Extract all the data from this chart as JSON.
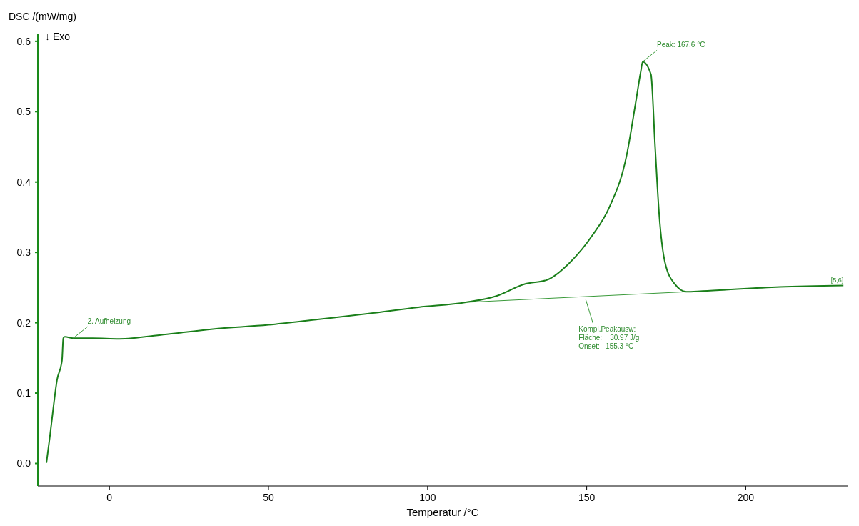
{
  "chart_data": {
    "type": "line",
    "xlabel": "Temperatur /°C",
    "ylabel": "DSC /(mW/mg)",
    "xlim": [
      -22.5,
      232
    ],
    "xticks": [
      0,
      50,
      100,
      150,
      200
    ],
    "ylim": [
      -0.032,
      0.61
    ],
    "yticks": [
      {
        "value": 0,
        "label": "0.0"
      },
      {
        "value": 0.1,
        "label": "0.1"
      },
      {
        "value": 0.2,
        "label": "0.2"
      },
      {
        "value": 0.3,
        "label": "0.3"
      },
      {
        "value": 0.4,
        "label": "0.4"
      },
      {
        "value": 0.5,
        "label": "0.5"
      },
      {
        "value": 0.6,
        "label": "0.6"
      }
    ],
    "grid": false,
    "legend": false,
    "marker": "none",
    "line_style": "solid",
    "series": [
      {
        "color": "#1a7f1a",
        "x": [
          -19.8,
          -18.7,
          -17.4,
          -16.5,
          -14.9,
          -14.5,
          -14.0,
          -11.4,
          -5.3,
          3.1,
          16.9,
          32.5,
          50,
          65.9,
          81.5,
          97.1,
          112,
          121.6,
          130.5,
          137.6,
          144.8,
          151.9,
          157.2,
          162.6,
          165.3,
          167,
          167.6,
          170.2,
          171.5,
          172.8,
          174.6,
          177.7,
          181.3,
          186.4,
          210.7,
          230.7
        ],
        "values": [
          0.001,
          0.039,
          0.088,
          0.118,
          0.147,
          0.178,
          0.18,
          0.178,
          0.178,
          0.177,
          0.183,
          0.191,
          0.197,
          0.205,
          0.213,
          0.222,
          0.229,
          0.238,
          0.255,
          0.261,
          0.286,
          0.325,
          0.365,
          0.439,
          0.51,
          0.557,
          0.571,
          0.553,
          0.451,
          0.353,
          0.286,
          0.255,
          0.244,
          0.245,
          0.251,
          0.253
        ]
      },
      {
        "color": "#3a9a3a",
        "x": [
          112,
          181.3
        ],
        "values": [
          0.229,
          0.244
        ]
      }
    ],
    "annotations": [
      "↓ Exo",
      {
        "text": "2. Aufheizung",
        "x": -11.4,
        "y": 0.178
      },
      {
        "text": "Peak: 167.6 °C",
        "x": 167.6,
        "y": 0.571
      },
      {
        "text": "Kompl.Peakausw:\nFläche:    30.97 J/g\nOnset:   155.3 °C",
        "x": 149.7,
        "y": 0.233
      },
      {
        "text": "[5,6]",
        "x": 230.7,
        "y": 0.253
      }
    ]
  }
}
